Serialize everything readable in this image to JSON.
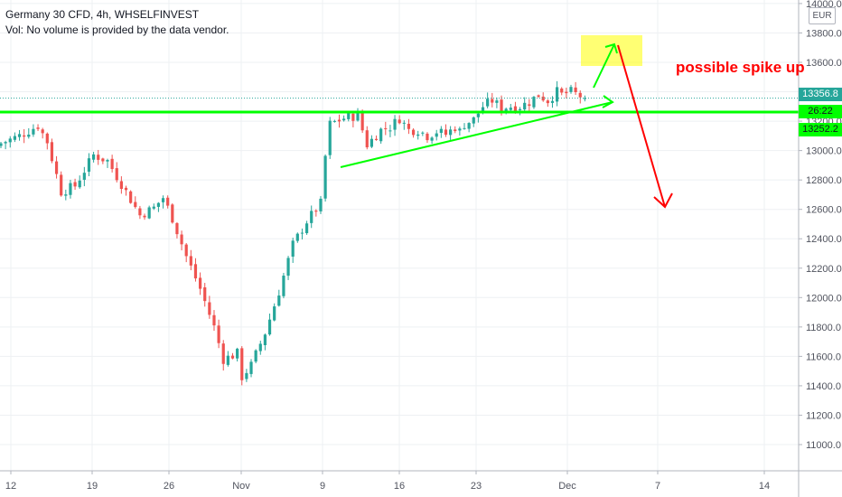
{
  "legend": {
    "title": "Germany 30 CFD, 4h, WHSELFINVEST",
    "volume_note": "Vol: No volume is provided by the data vendor."
  },
  "annotation": "possible spike up",
  "currency": "EUR",
  "price_labels": {
    "last": "13356.8",
    "countdown": "26:22",
    "level": "13252.2"
  },
  "colors": {
    "up": "#26a69a",
    "down": "#ef5350",
    "support": "#00ff00",
    "trendline": "#00ff00",
    "target_box": "#ffff00",
    "down_arrow": "#ff0000",
    "grid": "#eef0f3",
    "axis_text": "#50535e"
  },
  "chart_data": {
    "type": "candlestick",
    "y_axis": {
      "min": 10800,
      "max": 14000,
      "ticks": [
        11000,
        11200,
        11400,
        11600,
        11800,
        12000,
        12200,
        12400,
        12600,
        12800,
        13000,
        13200,
        13400,
        13600,
        13800,
        14000
      ],
      "tick_labels": [
        "11000.0",
        "11200.0",
        "11400.0",
        "11600.0",
        "11800.0",
        "12000.0",
        "12200.0",
        "12400.0",
        "12600.0",
        "12800.0",
        "13000.0",
        "13200.0",
        "13400.0",
        "13600.0",
        "13800.0",
        "14000.0"
      ]
    },
    "x_axis": {
      "tick_labels": [
        "12",
        "19",
        "26",
        "Nov",
        "9",
        "16",
        "23",
        "Dec",
        "7",
        "14"
      ]
    },
    "support_level": 13252.2,
    "last_price": 13356.8,
    "close_path": [
      [
        0,
        13050
      ],
      [
        4,
        13100
      ],
      [
        8,
        13170
      ],
      [
        10,
        13060
      ],
      [
        13,
        12720
      ],
      [
        16,
        12760
      ],
      [
        20,
        12970
      ],
      [
        23,
        12930
      ],
      [
        27,
        12720
      ],
      [
        30,
        12560
      ],
      [
        33,
        12610
      ],
      [
        35,
        12680
      ],
      [
        37,
        12540
      ],
      [
        40,
        12280
      ],
      [
        43,
        12060
      ],
      [
        46,
        11800
      ],
      [
        48,
        11580
      ],
      [
        51,
        11620
      ],
      [
        52,
        11460
      ],
      [
        54,
        11540
      ],
      [
        57,
        11760
      ],
      [
        60,
        12040
      ],
      [
        63,
        12360
      ],
      [
        66,
        12520
      ],
      [
        69,
        12640
      ],
      [
        70,
        12960
      ],
      [
        71,
        13180
      ],
      [
        74,
        13220
      ],
      [
        77,
        13240
      ],
      [
        79,
        13040
      ],
      [
        82,
        13140
      ],
      [
        84,
        13160
      ],
      [
        86,
        13220
      ],
      [
        88,
        13140
      ],
      [
        90,
        13140
      ],
      [
        92,
        13100
      ],
      [
        94,
        13130
      ],
      [
        96,
        13110
      ],
      [
        98,
        13160
      ],
      [
        99,
        13130
      ],
      [
        100,
        13180
      ],
      [
        102,
        13210
      ],
      [
        104,
        13300
      ],
      [
        106,
        13340
      ],
      [
        108,
        13290
      ],
      [
        110,
        13300
      ],
      [
        112,
        13300
      ],
      [
        114,
        13330
      ],
      [
        116,
        13380
      ],
      [
        118,
        13340
      ],
      [
        120,
        13400
      ],
      [
        121,
        13380
      ],
      [
        123,
        13400
      ],
      [
        125,
        13370
      ],
      [
        126,
        13356.8
      ]
    ],
    "drawings": {
      "support_line": "horizontal at 13252.2",
      "ascending_trendline": "rising support from Nov 10 low to early Dec",
      "target_box": "13570 to 13780",
      "up_arrow": "green arrow toward 13760",
      "down_arrow": "red arrow toward 12600"
    }
  }
}
